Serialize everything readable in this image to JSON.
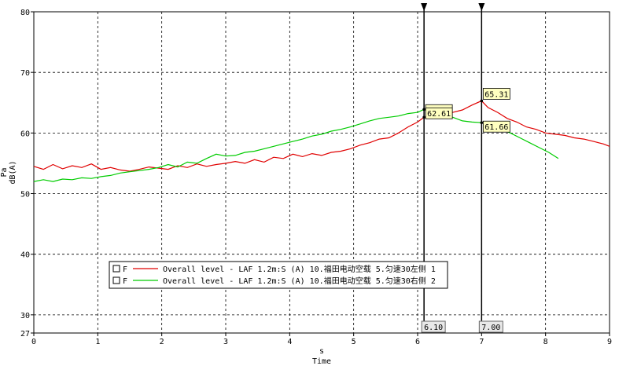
{
  "chart_data": {
    "type": "line",
    "xlabel": "Time",
    "xunit": "s",
    "ylabel": "dB(A)",
    "yunit": "Pa",
    "xlim": [
      0,
      9
    ],
    "ylim": [
      27,
      80
    ],
    "xticks": [
      0,
      1,
      2,
      3,
      4,
      5,
      6,
      7,
      8,
      9
    ],
    "yticks": [
      27,
      30,
      40,
      50,
      60,
      70,
      80
    ],
    "grid": true,
    "legend_position": "bottom-center",
    "series": [
      {
        "name": "Overall level - LAF 1.2m:S (A) 10.福田电动空载 5.匀速30左侧 1",
        "legend_prefix": "F",
        "color": "#e00000",
        "x": [
          0,
          0.15,
          0.3,
          0.45,
          0.6,
          0.75,
          0.9,
          1.05,
          1.2,
          1.35,
          1.5,
          1.65,
          1.8,
          1.95,
          2.1,
          2.25,
          2.4,
          2.55,
          2.7,
          2.85,
          3.0,
          3.15,
          3.3,
          3.45,
          3.6,
          3.75,
          3.9,
          4.05,
          4.2,
          4.35,
          4.5,
          4.65,
          4.8,
          4.95,
          5.1,
          5.25,
          5.4,
          5.55,
          5.7,
          5.85,
          6.0,
          6.1,
          6.25,
          6.4,
          6.55,
          6.7,
          6.85,
          7.0,
          7.1,
          7.25,
          7.4,
          7.55,
          7.7,
          7.85,
          8.0,
          8.15,
          8.3,
          8.45,
          8.6,
          8.75,
          8.9,
          9.0
        ],
        "y": [
          54.5,
          54.0,
          54.8,
          54.1,
          54.6,
          54.3,
          54.9,
          54.0,
          54.3,
          53.9,
          53.7,
          54.0,
          54.4,
          54.2,
          54.0,
          54.6,
          54.3,
          54.9,
          54.5,
          54.8,
          55.0,
          55.3,
          55.0,
          55.6,
          55.2,
          56.0,
          55.8,
          56.5,
          56.1,
          56.6,
          56.3,
          56.8,
          57.0,
          57.4,
          58.0,
          58.4,
          59.0,
          59.2,
          60.0,
          61.0,
          61.8,
          62.6,
          62.4,
          63.0,
          63.4,
          63.8,
          64.6,
          65.3,
          64.2,
          63.4,
          62.4,
          61.8,
          61.0,
          60.6,
          60.0,
          59.8,
          59.6,
          59.2,
          59.0,
          58.6,
          58.2,
          57.8
        ]
      },
      {
        "name": "Overall level - LAF 1.2m:S (A) 10.福田电动空载 5.匀速30右侧 2",
        "legend_prefix": "F",
        "color": "#00cc00",
        "x": [
          0,
          0.15,
          0.3,
          0.45,
          0.6,
          0.75,
          0.9,
          1.05,
          1.2,
          1.35,
          1.5,
          1.65,
          1.8,
          1.95,
          2.1,
          2.25,
          2.4,
          2.55,
          2.7,
          2.85,
          3.0,
          3.15,
          3.3,
          3.45,
          3.6,
          3.75,
          3.9,
          4.05,
          4.2,
          4.35,
          4.5,
          4.65,
          4.8,
          4.95,
          5.1,
          5.25,
          5.4,
          5.55,
          5.7,
          5.85,
          6.0,
          6.1,
          6.25,
          6.4,
          6.55,
          6.7,
          6.85,
          7.0,
          7.15,
          7.3,
          7.45,
          7.6,
          7.75,
          7.9,
          8.05,
          8.2
        ],
        "y": [
          52.0,
          52.3,
          52.0,
          52.4,
          52.3,
          52.6,
          52.5,
          52.8,
          53.0,
          53.4,
          53.6,
          53.8,
          54.0,
          54.3,
          54.8,
          54.4,
          55.2,
          55.0,
          55.8,
          56.5,
          56.2,
          56.3,
          56.8,
          57.0,
          57.4,
          57.8,
          58.2,
          58.6,
          59.0,
          59.5,
          59.8,
          60.3,
          60.6,
          61.0,
          61.5,
          62.0,
          62.4,
          62.6,
          62.8,
          63.2,
          63.4,
          63.9,
          63.6,
          63.0,
          62.6,
          62.0,
          61.8,
          61.7,
          61.2,
          60.6,
          60.0,
          59.2,
          58.4,
          57.6,
          56.8,
          55.8
        ]
      }
    ],
    "cursors": [
      {
        "x": 6.1,
        "label": "6.10",
        "values": [
          "63.86",
          "62.61"
        ]
      },
      {
        "x": 7.0,
        "label": "7.00",
        "values": [
          "65.31",
          "61.66"
        ]
      }
    ]
  }
}
